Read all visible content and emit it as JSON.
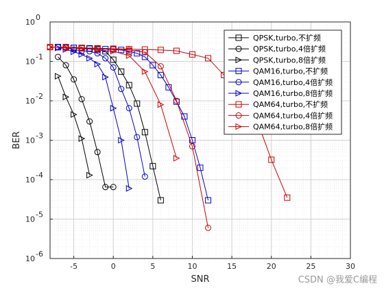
{
  "watermark": "CSDN @我爱C编程",
  "chart_data": {
    "type": "line",
    "title": "",
    "xlabel": "SNR",
    "ylabel": "BER",
    "xlim": [
      -8,
      30
    ],
    "ylim": [
      1e-06,
      1
    ],
    "yscale": "log",
    "grid": true,
    "minor_grid": true,
    "legend_position": "top-right",
    "x_ticks": [
      "-5",
      "0",
      "5",
      "10",
      "15",
      "20",
      "25",
      "30"
    ],
    "y_ticks": [
      {
        "base": "10",
        "exp": "0"
      },
      {
        "base": "10",
        "exp": "-1"
      },
      {
        "base": "10",
        "exp": "-2"
      },
      {
        "base": "10",
        "exp": "-3"
      },
      {
        "base": "10",
        "exp": "-4"
      },
      {
        "base": "10",
        "exp": "-5"
      },
      {
        "base": "10",
        "exp": "-6"
      }
    ],
    "series": [
      {
        "name": "QPSK,turbo,不扩频",
        "color": "#000000",
        "marker": "square",
        "x": [
          -7,
          -6,
          -5,
          -4,
          -3,
          -2,
          -1,
          0,
          1,
          2,
          3,
          4,
          5,
          6
        ],
        "y": [
          0.23,
          0.23,
          0.22,
          0.215,
          0.21,
          0.2,
          0.18,
          0.11,
          0.055,
          0.025,
          0.0085,
          0.0016,
          0.00022,
          3e-05
        ]
      },
      {
        "name": "QPSK,turbo,4倍扩频",
        "color": "#000000",
        "marker": "circle",
        "x": [
          -7,
          -6,
          -5,
          -4,
          -3,
          -2,
          -1,
          0
        ],
        "y": [
          0.13,
          0.08,
          0.035,
          0.011,
          0.003,
          0.0005,
          6.5e-05,
          6.5e-05
        ]
      },
      {
        "name": "QPSK,turbo,8倍扩频",
        "color": "#000000",
        "marker": "triangle-right",
        "x": [
          -7,
          -6,
          -5,
          -4,
          -3
        ],
        "y": [
          0.042,
          0.0125,
          0.0045,
          0.0011,
          0.00013
        ]
      },
      {
        "name": "QAM16,turbo,不扩频",
        "color": "#0000cc",
        "marker": "square",
        "x": [
          -7,
          -6,
          -5,
          -4,
          -3,
          -2,
          -1,
          0,
          1,
          2,
          3,
          4,
          5,
          6,
          7,
          8,
          9,
          10,
          11,
          12
        ],
        "y": [
          0.23,
          0.225,
          0.22,
          0.22,
          0.215,
          0.21,
          0.205,
          0.2,
          0.195,
          0.18,
          0.16,
          0.13,
          0.08,
          0.045,
          0.022,
          0.0095,
          0.004,
          0.001,
          0.0002,
          3e-05
        ]
      },
      {
        "name": "QAM16,turbo,4倍扩频",
        "color": "#0000cc",
        "marker": "circle",
        "x": [
          -7,
          -6,
          -5,
          -4,
          -3,
          -2,
          -1,
          0,
          1,
          2,
          3,
          4
        ],
        "y": [
          0.23,
          0.22,
          0.2,
          0.185,
          0.18,
          0.16,
          0.12,
          0.07,
          0.02,
          0.0065,
          0.0012,
          0.00012
        ]
      },
      {
        "name": "QAM16,turbo,8倍扩频",
        "color": "#0000cc",
        "marker": "triangle-right",
        "x": [
          -7,
          -6,
          -5,
          -4,
          -3,
          -2,
          -1,
          0,
          1,
          2
        ],
        "y": [
          0.22,
          0.2,
          0.175,
          0.15,
          0.12,
          0.085,
          0.04,
          0.0065,
          0.001,
          6e-05
        ]
      },
      {
        "name": "QAM64,turbo,不扩频",
        "color": "#cc0000",
        "marker": "square",
        "x": [
          -8,
          -6,
          -4,
          -2,
          0,
          2,
          4,
          6,
          8,
          10,
          12,
          14,
          16,
          18,
          20,
          22
        ],
        "y": [
          0.23,
          0.225,
          0.22,
          0.215,
          0.21,
          0.205,
          0.2,
          0.195,
          0.185,
          0.15,
          0.12,
          0.045,
          0.022,
          0.004,
          0.00032,
          3.5e-05
        ]
      },
      {
        "name": "QAM64,turbo,4倍扩频",
        "color": "#cc0000",
        "marker": "circle",
        "x": [
          -8,
          -6,
          -4,
          -2,
          0,
          2,
          4,
          6,
          8,
          10,
          12
        ],
        "y": [
          0.23,
          0.225,
          0.22,
          0.215,
          0.205,
          0.195,
          0.17,
          0.075,
          0.01,
          0.0007,
          6e-06
        ]
      },
      {
        "name": "QAM64,turbo,8倍扩频",
        "color": "#cc0000",
        "marker": "triangle-right",
        "x": [
          -8,
          -6,
          -4,
          -2,
          0,
          2,
          4,
          6,
          8
        ],
        "y": [
          0.23,
          0.22,
          0.21,
          0.2,
          0.18,
          0.14,
          0.055,
          0.008,
          0.00035
        ]
      }
    ]
  }
}
